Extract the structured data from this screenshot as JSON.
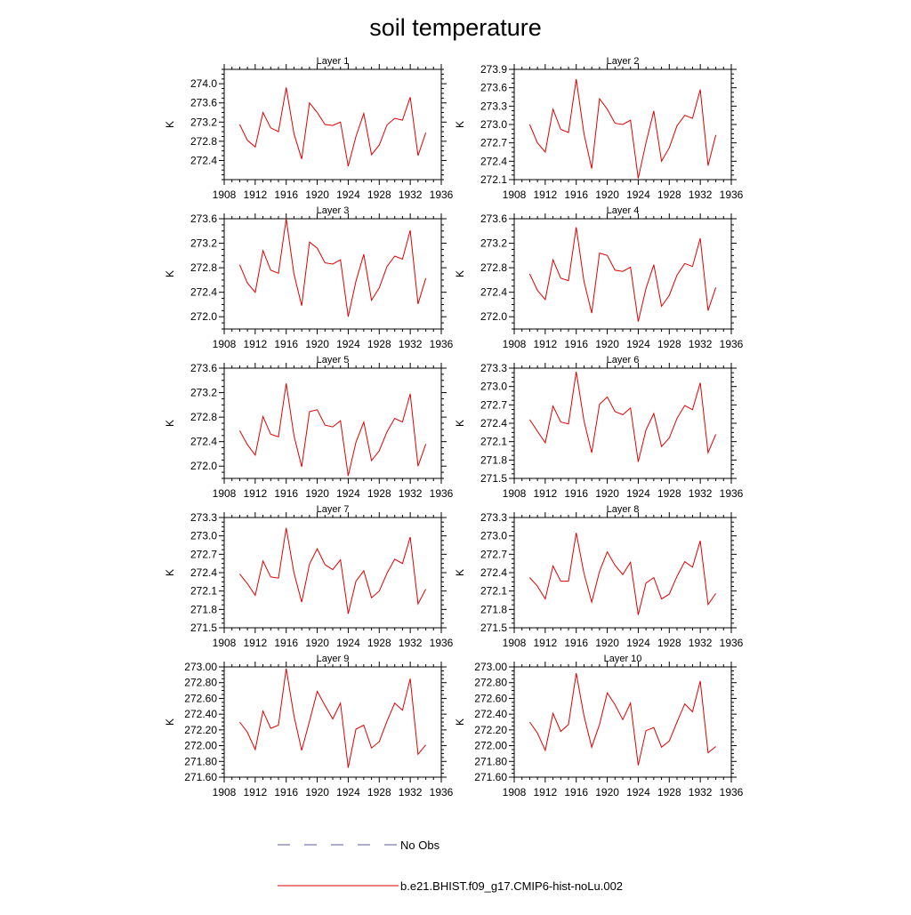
{
  "title": "soil temperature",
  "legend": {
    "no_obs_label": "No Obs",
    "no_obs_color": "#5a5aa0",
    "model_label": "b.e21.BHIST.f09_g17.CMIP6-hist-noLu.002",
    "model_color": "#e00000"
  },
  "chart_data": [
    {
      "type": "line",
      "title": "Layer 1",
      "xlabel": "",
      "ylabel": "K",
      "xlim": [
        1908,
        1936
      ],
      "xticks": [
        1908,
        1912,
        1916,
        1920,
        1924,
        1928,
        1932,
        1936
      ],
      "ylim": [
        272.0,
        274.3
      ],
      "yticks": [
        "272.4",
        "272.8",
        "273.2",
        "273.6",
        "274.0"
      ],
      "x": [
        1910,
        1911,
        1912,
        1913,
        1914,
        1915,
        1916,
        1917,
        1918,
        1919,
        1920,
        1921,
        1922,
        1923,
        1924,
        1925,
        1926,
        1927,
        1928,
        1929,
        1930,
        1931,
        1932,
        1933,
        1934
      ],
      "series": [
        {
          "name": "b.e21.BHIST.f09_g17.CMIP6-hist-noLu.002",
          "values": [
            273.15,
            272.82,
            272.68,
            273.4,
            273.08,
            273.0,
            273.92,
            272.96,
            272.43,
            273.6,
            273.4,
            273.15,
            273.13,
            273.2,
            272.28,
            272.9,
            273.38,
            272.52,
            272.72,
            273.14,
            273.28,
            273.24,
            273.72,
            272.5,
            272.98
          ]
        }
      ]
    },
    {
      "type": "line",
      "title": "Layer 2",
      "xlabel": "",
      "ylabel": "K",
      "xlim": [
        1908,
        1936
      ],
      "xticks": [
        1908,
        1912,
        1916,
        1920,
        1924,
        1928,
        1932,
        1936
      ],
      "ylim": [
        272.1,
        273.9
      ],
      "yticks": [
        "272.1",
        "272.4",
        "272.7",
        "273.0",
        "273.3",
        "273.6",
        "273.9"
      ],
      "x": [
        1910,
        1911,
        1912,
        1913,
        1914,
        1915,
        1916,
        1917,
        1918,
        1919,
        1920,
        1921,
        1922,
        1923,
        1924,
        1925,
        1926,
        1927,
        1928,
        1929,
        1930,
        1931,
        1932,
        1933,
        1934
      ],
      "series": [
        {
          "name": "b.e21.BHIST.f09_g17.CMIP6-hist-noLu.002",
          "values": [
            273.0,
            272.7,
            272.55,
            273.25,
            272.92,
            272.87,
            273.74,
            272.85,
            272.28,
            273.42,
            273.25,
            273.02,
            273.0,
            273.07,
            272.12,
            272.7,
            273.22,
            272.4,
            272.62,
            272.98,
            273.15,
            273.1,
            273.57,
            272.33,
            272.83
          ]
        }
      ]
    },
    {
      "type": "line",
      "title": "Layer 3",
      "xlabel": "",
      "ylabel": "K",
      "xlim": [
        1908,
        1936
      ],
      "xticks": [
        1908,
        1912,
        1916,
        1920,
        1924,
        1928,
        1932,
        1936
      ],
      "ylim": [
        271.8,
        273.6
      ],
      "yticks": [
        "272.0",
        "272.4",
        "272.8",
        "273.2",
        "273.6"
      ],
      "x": [
        1910,
        1911,
        1912,
        1913,
        1914,
        1915,
        1916,
        1917,
        1918,
        1919,
        1920,
        1921,
        1922,
        1923,
        1924,
        1925,
        1926,
        1927,
        1928,
        1929,
        1930,
        1931,
        1932,
        1933,
        1934
      ],
      "series": [
        {
          "name": "b.e21.BHIST.f09_g17.CMIP6-hist-noLu.002",
          "values": [
            272.85,
            272.55,
            272.4,
            273.08,
            272.76,
            272.71,
            273.6,
            272.7,
            272.18,
            273.22,
            273.12,
            272.88,
            272.86,
            272.93,
            272.0,
            272.58,
            273.02,
            272.27,
            272.47,
            272.82,
            272.99,
            272.94,
            273.41,
            272.21,
            272.63
          ]
        }
      ]
    },
    {
      "type": "line",
      "title": "Layer 4",
      "xlabel": "",
      "ylabel": "K",
      "xlim": [
        1908,
        1936
      ],
      "xticks": [
        1908,
        1912,
        1916,
        1920,
        1924,
        1928,
        1932,
        1936
      ],
      "ylim": [
        271.8,
        273.6
      ],
      "yticks": [
        "272.0",
        "272.4",
        "272.8",
        "273.2",
        "273.6"
      ],
      "x": [
        1910,
        1911,
        1912,
        1913,
        1914,
        1915,
        1916,
        1917,
        1918,
        1919,
        1920,
        1921,
        1922,
        1923,
        1924,
        1925,
        1926,
        1927,
        1928,
        1929,
        1930,
        1931,
        1932,
        1933,
        1934
      ],
      "series": [
        {
          "name": "b.e21.BHIST.f09_g17.CMIP6-hist-noLu.002",
          "values": [
            272.7,
            272.43,
            272.28,
            272.93,
            272.63,
            272.59,
            273.46,
            272.58,
            272.06,
            273.04,
            273.0,
            272.76,
            272.74,
            272.81,
            271.92,
            272.46,
            272.85,
            272.17,
            272.35,
            272.68,
            272.87,
            272.82,
            273.28,
            272.1,
            272.48
          ]
        }
      ]
    },
    {
      "type": "line",
      "title": "Layer 5",
      "xlabel": "",
      "ylabel": "K",
      "xlim": [
        1908,
        1936
      ],
      "xticks": [
        1908,
        1912,
        1916,
        1920,
        1924,
        1928,
        1932,
        1936
      ],
      "ylim": [
        271.8,
        273.6
      ],
      "yticks": [
        "272.0",
        "272.4",
        "272.8",
        "273.2",
        "273.6"
      ],
      "x": [
        1910,
        1911,
        1912,
        1913,
        1914,
        1915,
        1916,
        1917,
        1918,
        1919,
        1920,
        1921,
        1922,
        1923,
        1924,
        1925,
        1926,
        1927,
        1928,
        1929,
        1930,
        1931,
        1932,
        1933,
        1934
      ],
      "series": [
        {
          "name": "b.e21.BHIST.f09_g17.CMIP6-hist-noLu.002",
          "values": [
            272.58,
            272.35,
            272.18,
            272.81,
            272.52,
            272.48,
            273.35,
            272.5,
            271.99,
            272.89,
            272.92,
            272.67,
            272.64,
            272.74,
            271.84,
            272.39,
            272.72,
            272.09,
            272.25,
            272.56,
            272.78,
            272.72,
            273.18,
            272.0,
            272.36
          ]
        }
      ]
    },
    {
      "type": "line",
      "title": "Layer 6",
      "xlabel": "",
      "ylabel": "K",
      "xlim": [
        1908,
        1936
      ],
      "xticks": [
        1908,
        1912,
        1916,
        1920,
        1924,
        1928,
        1932,
        1936
      ],
      "ylim": [
        271.5,
        273.3
      ],
      "yticks": [
        "271.5",
        "271.8",
        "272.1",
        "272.4",
        "272.7",
        "273.0",
        "273.3"
      ],
      "x": [
        1910,
        1911,
        1912,
        1913,
        1914,
        1915,
        1916,
        1917,
        1918,
        1919,
        1920,
        1921,
        1922,
        1923,
        1924,
        1925,
        1926,
        1927,
        1928,
        1929,
        1930,
        1931,
        1932,
        1933,
        1934
      ],
      "series": [
        {
          "name": "b.e21.BHIST.f09_g17.CMIP6-hist-noLu.002",
          "values": [
            272.46,
            272.27,
            272.08,
            272.68,
            272.42,
            272.39,
            273.24,
            272.44,
            271.92,
            272.71,
            272.83,
            272.59,
            272.54,
            272.65,
            271.77,
            272.29,
            272.56,
            272.02,
            272.16,
            272.48,
            272.69,
            272.62,
            273.06,
            271.92,
            272.22
          ]
        }
      ]
    },
    {
      "type": "line",
      "title": "Layer 7",
      "xlabel": "",
      "ylabel": "K",
      "xlim": [
        1908,
        1936
      ],
      "xticks": [
        1908,
        1912,
        1916,
        1920,
        1924,
        1928,
        1932,
        1936
      ],
      "ylim": [
        271.5,
        273.3
      ],
      "yticks": [
        "271.5",
        "271.8",
        "272.1",
        "272.4",
        "272.7",
        "273.0",
        "273.3"
      ],
      "x": [
        1910,
        1911,
        1912,
        1913,
        1914,
        1915,
        1916,
        1917,
        1918,
        1919,
        1920,
        1921,
        1922,
        1923,
        1924,
        1925,
        1926,
        1927,
        1928,
        1929,
        1930,
        1931,
        1932,
        1933,
        1934
      ],
      "series": [
        {
          "name": "b.e21.BHIST.f09_g17.CMIP6-hist-noLu.002",
          "values": [
            272.38,
            272.22,
            272.03,
            272.59,
            272.33,
            272.31,
            273.13,
            272.4,
            271.92,
            272.54,
            272.79,
            272.53,
            272.45,
            272.61,
            271.73,
            272.26,
            272.43,
            271.99,
            272.1,
            272.39,
            272.62,
            272.55,
            272.98,
            271.89,
            272.13
          ]
        }
      ]
    },
    {
      "type": "line",
      "title": "Layer 8",
      "xlabel": "",
      "ylabel": "K",
      "xlim": [
        1908,
        1936
      ],
      "xticks": [
        1908,
        1912,
        1916,
        1920,
        1924,
        1928,
        1932,
        1936
      ],
      "ylim": [
        271.5,
        273.3
      ],
      "yticks": [
        "271.5",
        "271.8",
        "272.1",
        "272.4",
        "272.7",
        "273.0",
        "273.3"
      ],
      "x": [
        1910,
        1911,
        1912,
        1913,
        1914,
        1915,
        1916,
        1917,
        1918,
        1919,
        1920,
        1921,
        1922,
        1923,
        1924,
        1925,
        1926,
        1927,
        1928,
        1929,
        1930,
        1931,
        1932,
        1933,
        1934
      ],
      "series": [
        {
          "name": "b.e21.BHIST.f09_g17.CMIP6-hist-noLu.002",
          "values": [
            272.32,
            272.18,
            271.97,
            272.51,
            272.26,
            272.26,
            273.05,
            272.39,
            271.92,
            272.42,
            272.74,
            272.52,
            272.37,
            272.57,
            271.71,
            272.23,
            272.32,
            271.97,
            272.05,
            272.34,
            272.58,
            272.49,
            272.92,
            271.88,
            272.06
          ]
        }
      ]
    },
    {
      "type": "line",
      "title": "Layer 9",
      "xlabel": "",
      "ylabel": "K",
      "xlim": [
        1908,
        1936
      ],
      "xticks": [
        1908,
        1912,
        1916,
        1920,
        1924,
        1928,
        1932,
        1936
      ],
      "ylim": [
        271.6,
        273.0
      ],
      "yticks": [
        "271.60",
        "271.80",
        "272.00",
        "272.20",
        "272.40",
        "272.60",
        "272.80",
        "273.00"
      ],
      "x": [
        1910,
        1911,
        1912,
        1913,
        1914,
        1915,
        1916,
        1917,
        1918,
        1919,
        1920,
        1921,
        1922,
        1923,
        1924,
        1925,
        1926,
        1927,
        1928,
        1929,
        1930,
        1931,
        1932,
        1933,
        1934
      ],
      "series": [
        {
          "name": "b.e21.BHIST.f09_g17.CMIP6-hist-noLu.002",
          "values": [
            272.3,
            272.17,
            271.95,
            272.44,
            272.22,
            272.26,
            272.98,
            272.38,
            271.94,
            272.31,
            272.69,
            272.51,
            272.34,
            272.54,
            271.72,
            272.21,
            272.26,
            271.97,
            272.05,
            272.31,
            272.54,
            272.45,
            272.85,
            271.89,
            272.01
          ]
        }
      ]
    },
    {
      "type": "line",
      "title": "Layer 10",
      "xlabel": "",
      "ylabel": "K",
      "xlim": [
        1908,
        1936
      ],
      "xticks": [
        1908,
        1912,
        1916,
        1920,
        1924,
        1928,
        1932,
        1936
      ],
      "ylim": [
        271.6,
        273.0
      ],
      "yticks": [
        "271.60",
        "271.80",
        "272.00",
        "272.20",
        "272.40",
        "272.60",
        "272.80",
        "273.00"
      ],
      "x": [
        1910,
        1911,
        1912,
        1913,
        1914,
        1915,
        1916,
        1917,
        1918,
        1919,
        1920,
        1921,
        1922,
        1923,
        1924,
        1925,
        1926,
        1927,
        1928,
        1929,
        1930,
        1931,
        1932,
        1933,
        1934
      ],
      "series": [
        {
          "name": "b.e21.BHIST.f09_g17.CMIP6-hist-noLu.002",
          "values": [
            272.3,
            272.16,
            271.94,
            272.41,
            272.18,
            272.27,
            272.92,
            272.38,
            271.98,
            272.27,
            272.67,
            272.52,
            272.33,
            272.54,
            271.75,
            272.19,
            272.23,
            271.98,
            272.06,
            272.3,
            272.53,
            272.43,
            272.82,
            271.91,
            271.99
          ]
        }
      ]
    }
  ]
}
